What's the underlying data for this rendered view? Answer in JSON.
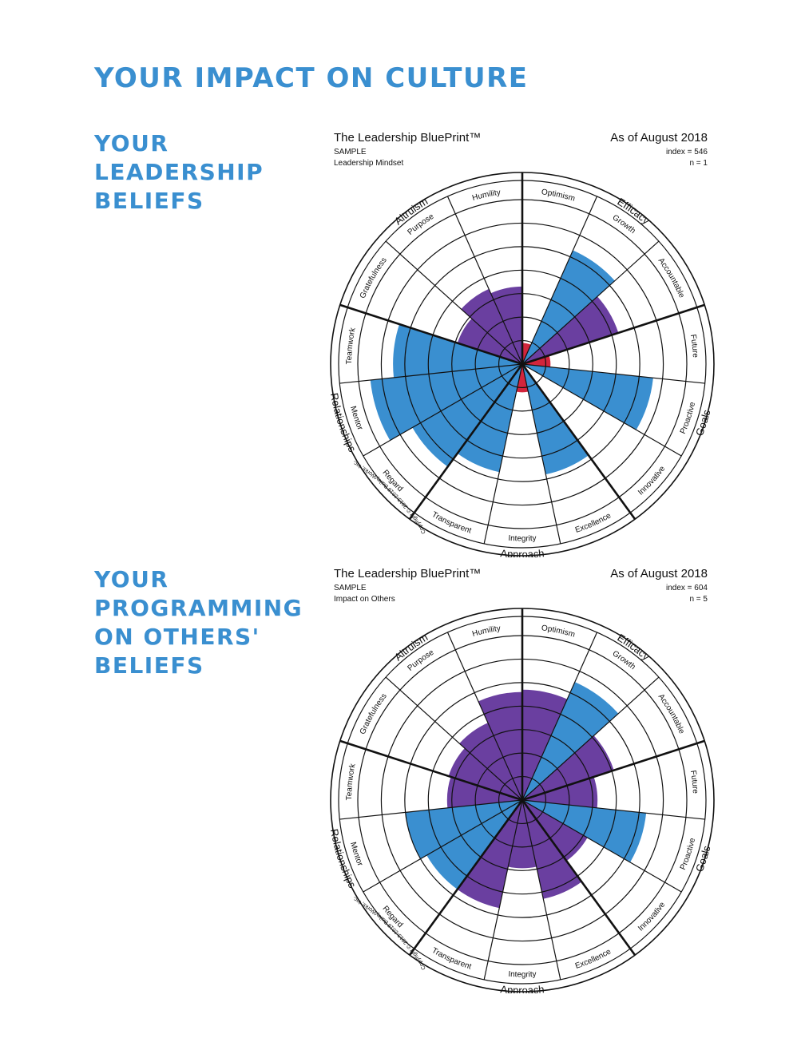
{
  "page": {
    "title": "YOUR IMPACT ON CULTURE",
    "sections": [
      {
        "heading_lines": [
          "YOUR",
          "LEADERSHIP",
          "BELIEFS"
        ]
      },
      {
        "heading_lines": [
          "YOUR",
          "PROGRAMMING",
          "ON OTHERS'",
          "BELIEFS"
        ]
      }
    ]
  },
  "colors": {
    "heading": "#3a8fd0",
    "blue": "#3a8fd0",
    "purple": "#6a3fa0",
    "red": "#d2253c"
  },
  "chart_data": [
    {
      "type": "polar-bar",
      "title": "The Leadership BluePrint™",
      "sample_label": "SAMPLE",
      "subtitle": "Leadership Mindset",
      "date_label": "As of August 2018",
      "index_label": "index = 546",
      "n_label": "n = 1",
      "copyright": "Copyright © 2013-2016 BaileyWorks, Inc.",
      "scale_rings": 7,
      "groups": [
        {
          "name": "Efficacy",
          "segments": [
            "Optimism",
            "Growth",
            "Accountable"
          ]
        },
        {
          "name": "Goals",
          "segments": [
            "Future",
            "Proactive",
            "Innovative"
          ]
        },
        {
          "name": "Approach",
          "segments": [
            "Excellence",
            "Integrity",
            "Transparent"
          ]
        },
        {
          "name": "Relationships",
          "segments": [
            "Regard",
            "Mentor",
            "Teamwork"
          ]
        },
        {
          "name": "Altruism",
          "segments": [
            "Gratefulness",
            "Purpose",
            "Humility"
          ]
        }
      ],
      "series": [
        {
          "segments": [
            "Optimism",
            "Growth",
            "Accountable",
            "Future",
            "Proactive",
            "Innovative",
            "Excellence",
            "Integrity",
            "Transparent",
            "Regard",
            "Mentor",
            "Teamwork",
            "Gratefulness",
            "Purpose",
            "Humility"
          ],
          "values": [
            0.9,
            5.3,
            4.3,
            1.2,
            5.6,
            1.5,
            4.8,
            1.2,
            4.7,
            5.4,
            6.5,
            5.5,
            2.9,
            3.5,
            3.3
          ],
          "colors": [
            "red",
            "blue",
            "purple",
            "red",
            "blue",
            "none",
            "blue",
            "red",
            "blue",
            "blue",
            "blue",
            "blue",
            "purple",
            "purple",
            "purple"
          ]
        }
      ]
    },
    {
      "type": "polar-bar",
      "title": "The Leadership BluePrint™",
      "sample_label": "SAMPLE",
      "subtitle": "Impact on Others",
      "date_label": "As of August 2018",
      "index_label": "index = 604",
      "n_label": "n = 5",
      "copyright": "Copyright © 2013-2016 BaileyWorks, Inc.",
      "scale_rings": 7,
      "groups": [
        {
          "name": "Efficacy",
          "segments": [
            "Optimism",
            "Growth",
            "Accountable"
          ]
        },
        {
          "name": "Goals",
          "segments": [
            "Future",
            "Proactive",
            "Innovative"
          ]
        },
        {
          "name": "Approach",
          "segments": [
            "Excellence",
            "Integrity",
            "Transparent"
          ]
        },
        {
          "name": "Relationships",
          "segments": [
            "Regard",
            "Mentor",
            "Teamwork"
          ]
        },
        {
          "name": "Altruism",
          "segments": [
            "Gratefulness",
            "Purpose",
            "Humility"
          ]
        }
      ],
      "series": [
        {
          "segments": [
            "Optimism",
            "Growth",
            "Accountable",
            "Future",
            "Proactive",
            "Innovative",
            "Excellence",
            "Integrity",
            "Transparent",
            "Regard",
            "Mentor",
            "Teamwork",
            "Gratefulness",
            "Purpose",
            "Humility"
          ],
          "values": [
            4.7,
            5.5,
            4.1,
            3.2,
            5.3,
            3.2,
            4.3,
            2.9,
            4.7,
            4.7,
            5.0,
            3.2,
            3.3,
            3.6,
            4.6
          ],
          "colors": [
            "purple",
            "blue",
            "purple",
            "purple",
            "blue",
            "purple",
            "purple",
            "purple",
            "purple",
            "blue",
            "blue",
            "purple",
            "purple",
            "purple",
            "purple"
          ]
        }
      ]
    }
  ]
}
